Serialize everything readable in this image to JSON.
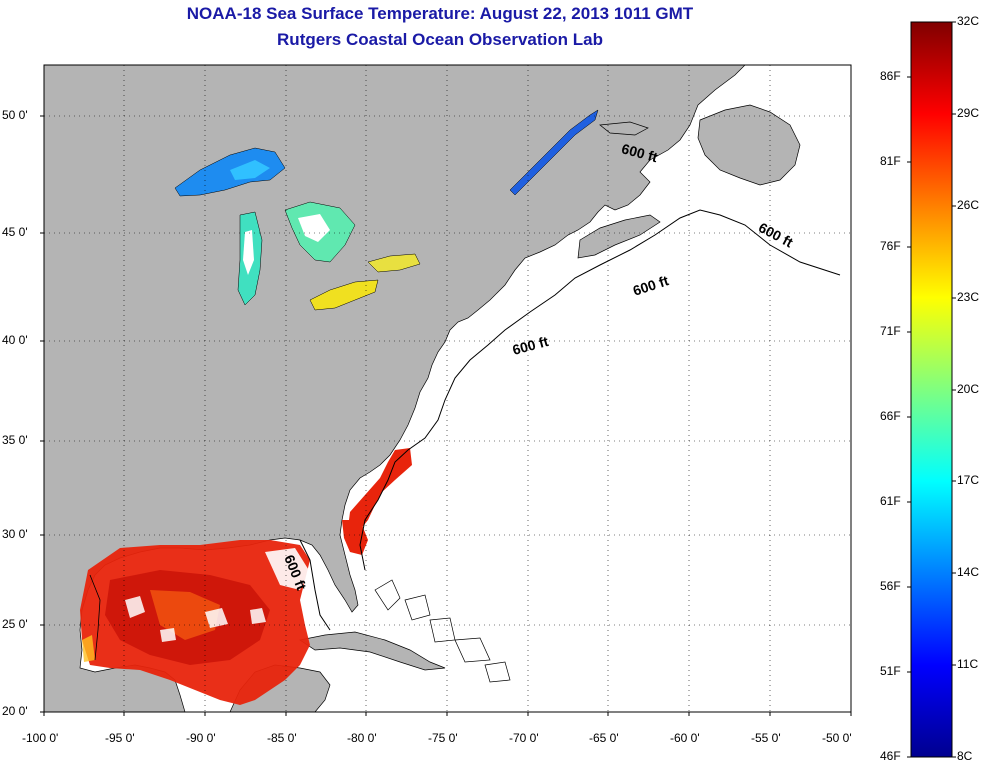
{
  "title": {
    "line1": "NOAA-18 Sea Surface Temperature:  August 22, 2013 1011 GMT",
    "line2": "Rutgers Coastal Ocean Observation Lab"
  },
  "map": {
    "lon_range": [
      -100,
      -50
    ],
    "lat_range": [
      20,
      52.5
    ],
    "lat_ticks": [
      "50 0'",
      "45 0'",
      "40 0'",
      "35 0'",
      "30 0'",
      "25 0'",
      "20 0'"
    ],
    "lon_ticks": [
      "-100 0'",
      "-95 0'",
      "-90 0'",
      "-85 0'",
      "-80 0'",
      "-75 0'",
      "-70 0'",
      "-65 0'",
      "-60 0'",
      "-55 0'",
      "-50 0'"
    ],
    "grid": "dotted",
    "land_color": "#b4b4b4",
    "ocean_color": "#ffffff",
    "contour_labels": [
      "600 ft",
      "600 ft",
      "600 ft",
      "600 ft",
      "600 ft"
    ]
  },
  "colorbar": {
    "fahrenheit_labels": [
      "86F",
      "81F",
      "76F",
      "71F",
      "66F",
      "61F",
      "56F",
      "51F",
      "46F"
    ],
    "celsius_labels": [
      "32C",
      "29C",
      "26C",
      "23C",
      "20C",
      "17C",
      "14C",
      "11C",
      "8C"
    ],
    "colormap": "jet",
    "range_c": [
      8,
      32
    ]
  },
  "colors": {
    "title": "#1a1aa6",
    "warm_sst": "#e8240c",
    "cool_sst": "#1e6fe0",
    "lake_yellow": "#f0e020"
  }
}
